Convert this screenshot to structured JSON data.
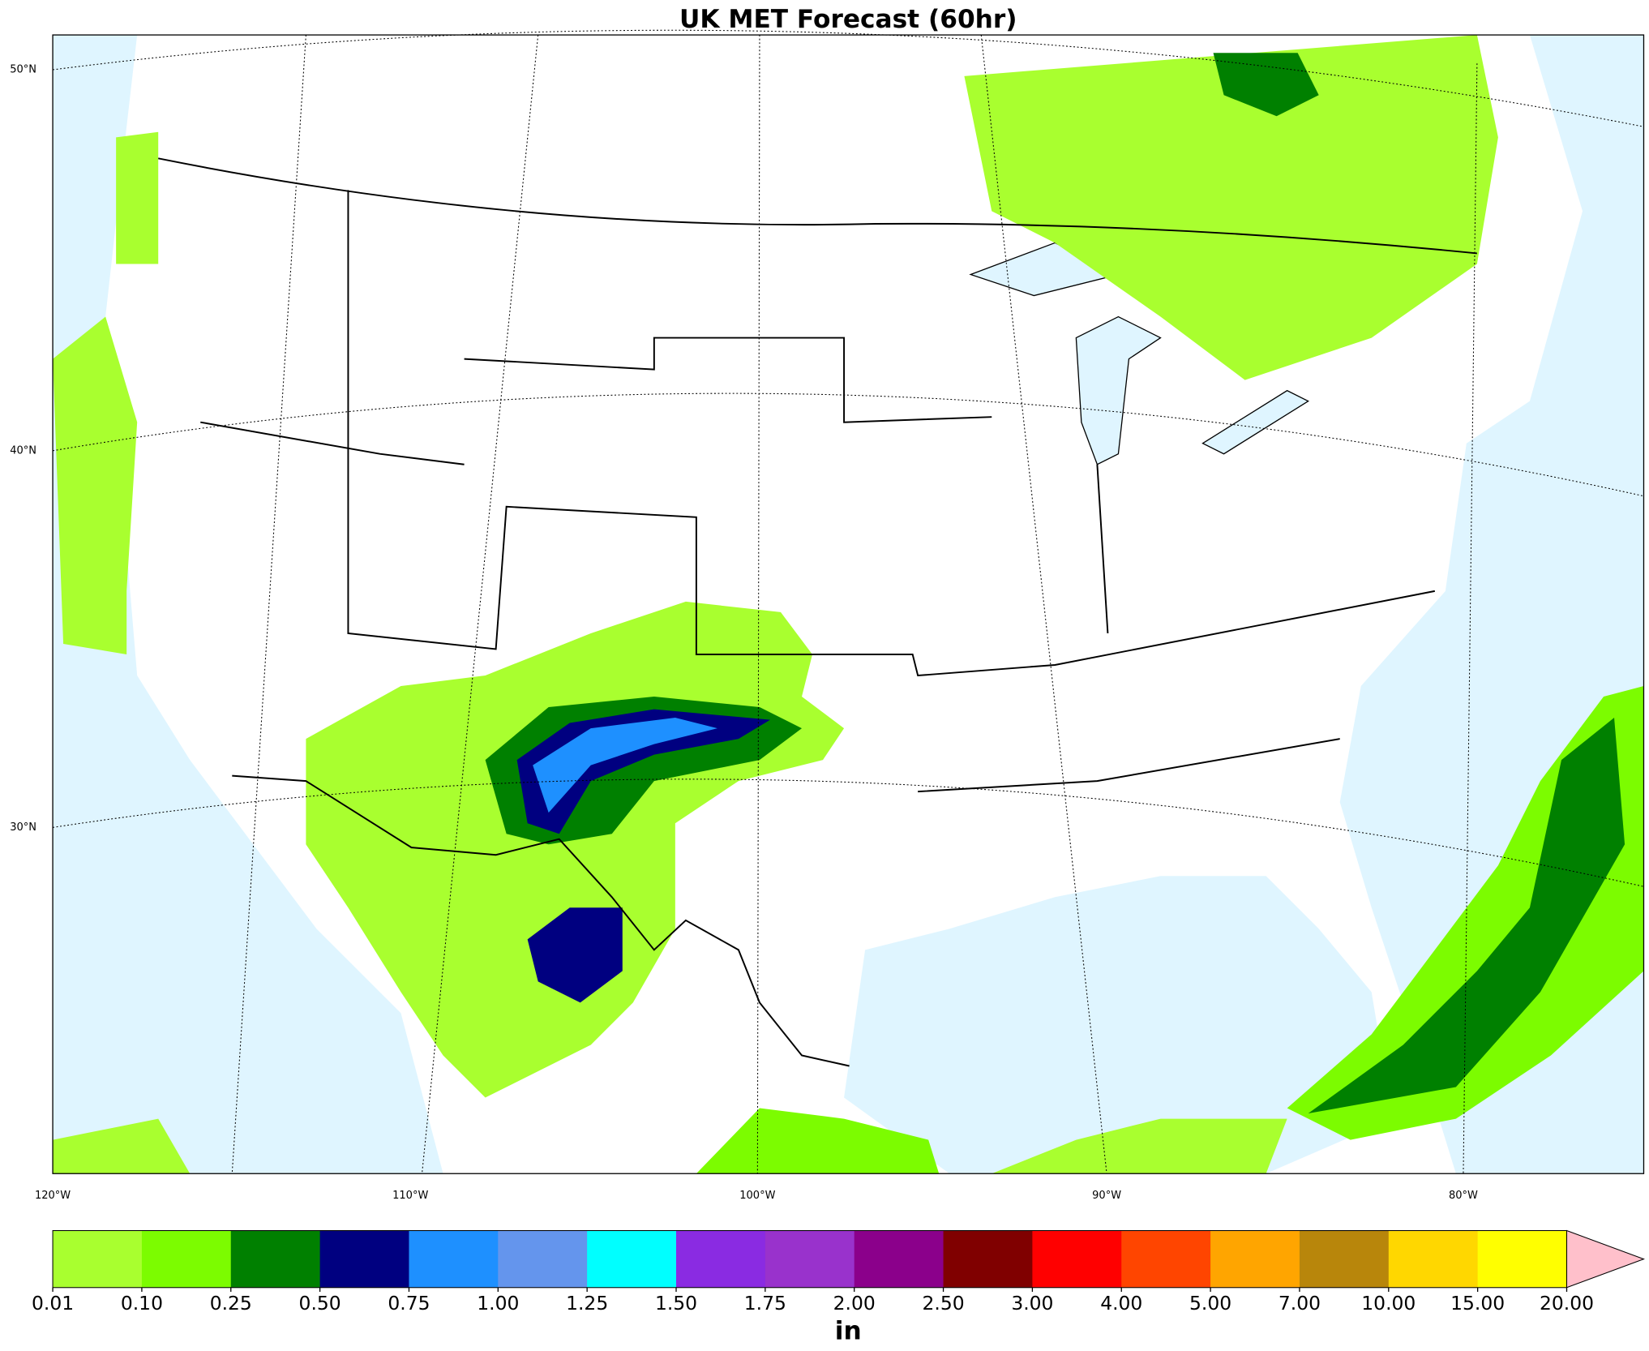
{
  "title": "UK MET Forecast (60hr)",
  "map": {
    "lon_labels": [
      "120°W",
      "110°W",
      "100°W",
      "90°W",
      "80°W"
    ],
    "lat_labels": [
      "50°N",
      "40°N",
      "30°N"
    ]
  },
  "colorbar": {
    "levels": [
      {
        "value": 0.01,
        "label": "0.01"
      },
      {
        "value": 0.1,
        "label": "0.10"
      },
      {
        "value": 0.25,
        "label": "0.25"
      },
      {
        "value": 0.5,
        "label": "0.50"
      },
      {
        "value": 0.75,
        "label": "0.75"
      },
      {
        "value": 1,
        "label": "1.00"
      },
      {
        "value": 1.25,
        "label": "1.25"
      },
      {
        "value": 1.5,
        "label": "1.50"
      },
      {
        "value": 1.75,
        "label": "1.75"
      },
      {
        "value": 2,
        "label": "2.00"
      },
      {
        "value": 2.5,
        "label": "2.50"
      },
      {
        "value": 3,
        "label": "3.00"
      },
      {
        "value": 4,
        "label": "4.00"
      },
      {
        "value": 5,
        "label": "5.00"
      },
      {
        "value": 7,
        "label": "7.00"
      },
      {
        "value": 10,
        "label": "10.00"
      },
      {
        "value": 15,
        "label": "15.00"
      },
      {
        "value": 20,
        "label": "20.00"
      }
    ],
    "colors": [
      "#a9ff2f",
      "#7cfc00",
      "#008000",
      "#000080",
      "#1e90ff",
      "#6495ed",
      "#00ffff",
      "#8a2be2",
      "#9932cc",
      "#8b008b",
      "#800000",
      "#ff0000",
      "#ff4500",
      "#ffa500",
      "#b8860b",
      "#ffd700",
      "#ffff00"
    ],
    "over_color": "#ffc0cb",
    "unit": "in"
  }
}
